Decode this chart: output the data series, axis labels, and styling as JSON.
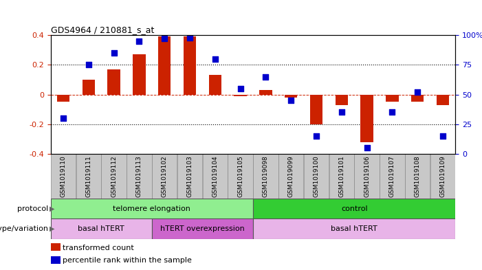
{
  "title": "GDS4964 / 210881_s_at",
  "samples": [
    "GSM1019110",
    "GSM1019111",
    "GSM1019112",
    "GSM1019113",
    "GSM1019102",
    "GSM1019103",
    "GSM1019104",
    "GSM1019105",
    "GSM1019098",
    "GSM1019099",
    "GSM1019100",
    "GSM1019101",
    "GSM1019106",
    "GSM1019107",
    "GSM1019108",
    "GSM1019109"
  ],
  "transformed_count": [
    -0.05,
    0.1,
    0.17,
    0.27,
    0.39,
    0.39,
    0.13,
    -0.01,
    0.03,
    -0.02,
    -0.2,
    -0.07,
    -0.32,
    -0.05,
    -0.05,
    -0.07
  ],
  "percentile_rank": [
    30,
    75,
    85,
    95,
    97,
    98,
    80,
    55,
    65,
    45,
    15,
    35,
    5,
    35,
    52,
    15
  ],
  "ylim": [
    -0.4,
    0.4
  ],
  "yticks_left": [
    -0.4,
    -0.2,
    0.0,
    0.2,
    0.4
  ],
  "yticks_right": [
    0,
    25,
    50,
    75,
    100
  ],
  "bar_color": "#cc2200",
  "dot_color": "#0000cc",
  "zero_line_color": "#cc2200",
  "dotted_line_color": "#000000",
  "protocol_labels": [
    {
      "text": "telomere elongation",
      "start": 0,
      "end": 7,
      "color": "#90ee90"
    },
    {
      "text": "control",
      "start": 8,
      "end": 15,
      "color": "#33cc33"
    }
  ],
  "genotype_labels": [
    {
      "text": "basal hTERT",
      "start": 0,
      "end": 3,
      "color": "#e8b4e8"
    },
    {
      "text": "hTERT overexpression",
      "start": 4,
      "end": 7,
      "color": "#cc66cc"
    },
    {
      "text": "basal hTERT",
      "start": 8,
      "end": 15,
      "color": "#e8b4e8"
    }
  ],
  "legend_items": [
    {
      "color": "#cc2200",
      "label": "transformed count"
    },
    {
      "color": "#0000cc",
      "label": "percentile rank within the sample"
    }
  ],
  "tick_label_bg": "#c8c8c8"
}
